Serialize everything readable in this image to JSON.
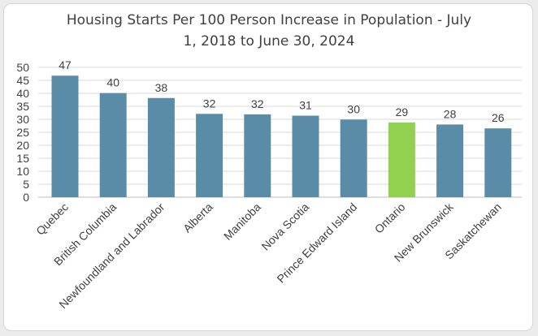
{
  "chart_data": {
    "type": "bar",
    "title_lines": [
      "Housing Starts Per 100 Person Increase in Population - July",
      "1, 2018 to June 30, 2024"
    ],
    "xlabel": "",
    "ylabel": "",
    "categories": [
      "Quebec",
      "British Columbia",
      "Newfoundland and Labrador",
      "Alberta",
      "Manitoba",
      "Nova Scotia",
      "Prince Edward Island",
      "Ontario",
      "New Brunswick",
      "Saskatchewan"
    ],
    "values": [
      46.8,
      40.1,
      38.2,
      32.1,
      31.9,
      31.4,
      29.9,
      28.8,
      28.0,
      26.5
    ],
    "data_labels": [
      "47",
      "40",
      "38",
      "32",
      "32",
      "31",
      "30",
      "29",
      "28",
      "26"
    ],
    "y_ticks": [
      "0",
      "5",
      "10",
      "15",
      "20",
      "25",
      "30",
      "35",
      "40",
      "45",
      "50"
    ],
    "ylim": [
      0,
      50
    ],
    "grid": true,
    "legend": false,
    "colors": {
      "bar": "#5a8ba7",
      "highlight": "#92d050",
      "highlight_category": "Ontario",
      "grid": "#d9d9d9",
      "text": "#404040"
    }
  }
}
